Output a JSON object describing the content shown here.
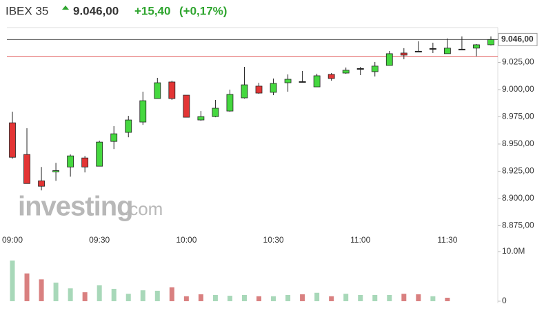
{
  "chart_data": {
    "type": "candlestick",
    "title": "IBEX 35",
    "last": {
      "value": 9046,
      "label": "9.046,00"
    },
    "change": "+15,40",
    "change_pct": "(+0,17%)",
    "watermark": "investing",
    "watermark_suffix": ".com",
    "prev_close": 9030.6,
    "categories": [
      "09:00",
      null,
      null,
      null,
      null,
      null,
      "09:30",
      null,
      null,
      null,
      null,
      null,
      "10:00",
      null,
      null,
      null,
      null,
      null,
      "10:30",
      null,
      null,
      null,
      null,
      null,
      "11:00",
      null,
      null,
      null,
      null,
      null,
      "11:30",
      null,
      null,
      null
    ],
    "open": [
      8969.5,
      8940.4,
      8916.2,
      8924.4,
      8928.9,
      8937.2,
      8929.6,
      8952.4,
      8960.7,
      8970.2,
      8991.8,
      9007.0,
      8994.9,
      8972.1,
      8975.2,
      8980.3,
      8992.4,
      9003.2,
      8997.5,
      9006.3,
      9007.0,
      9002.5,
      9014.0,
      9015.2,
      9019.0,
      9016.5,
      9022.2,
      9033.6,
      9034.9,
      9037.4,
      9033.0,
      9036.8,
      9038.1,
      9041.2
    ],
    "high": [
      8979.7,
      8964.5,
      8928.9,
      8932.7,
      8940.4,
      8939.1,
      8953.0,
      8966.4,
      8975.9,
      8998.1,
      9010.8,
      9008.2,
      8994.9,
      8980.3,
      8990.5,
      9000.0,
      9020.9,
      9006.3,
      9010.2,
      9014.0,
      9017.1,
      9014.6,
      9015.2,
      9020.3,
      9020.9,
      9025.4,
      9035.5,
      9038.1,
      9044.4,
      9043.1,
      9047.0,
      9048.9,
      9041.9,
      9048.9
    ],
    "low": [
      8936.5,
      8913.7,
      8907.4,
      8916.2,
      8920.0,
      8923.9,
      8929.6,
      8945.4,
      8956.2,
      8967.6,
      8991.8,
      8990.5,
      8974.6,
      8971.4,
      8974.6,
      8979.7,
      8991.8,
      8996.2,
      8994.9,
      8998.1,
      9007.0,
      9002.5,
      9008.2,
      9014.6,
      9013.3,
      9012.1,
      9022.2,
      9027.9,
      9034.9,
      9033.6,
      9033.0,
      9036.2,
      9030.5,
      9040.6
    ],
    "close": [
      8937.8,
      8913.7,
      8911.2,
      8925.6,
      8939.1,
      8928.9,
      8951.8,
      8959.4,
      8972.1,
      8989.8,
      9006.3,
      8991.8,
      8974.6,
      8975.2,
      8982.9,
      8995.6,
      9004.4,
      8996.8,
      9005.7,
      9009.5,
      9007.0,
      9012.7,
      9010.2,
      9017.8,
      9019.0,
      9021.6,
      9033.0,
      9031.7,
      9034.9,
      9037.4,
      9038.1,
      9036.8,
      9041.2,
      9046.0
    ],
    "volume": [
      8200000,
      5600000,
      4400000,
      3750000,
      2600000,
      1800000,
      3200000,
      2500000,
      1500000,
      2200000,
      2100000,
      2800000,
      1000000,
      1400000,
      1250000,
      1100000,
      1250000,
      1000000,
      1000000,
      1250000,
      1400000,
      1700000,
      1000000,
      1500000,
      1250000,
      1250000,
      1250000,
      1500000,
      1400000,
      1000000,
      700000,
      0,
      0,
      0
    ],
    "volume_colors": [
      "#a8d8b9",
      "#d98080",
      "#d98080",
      "#a8d8b9",
      "#a8d8b9",
      "#d98080",
      "#a8d8b9",
      "#a8d8b9",
      "#a8d8b9",
      "#a8d8b9",
      "#a8d8b9",
      "#d98080",
      "#d98080",
      "#d98080",
      "#a8d8b9",
      "#a8d8b9",
      "#a8d8b9",
      "#d98080",
      "#a8d8b9",
      "#a8d8b9",
      "#d98080",
      "#a8d8b9",
      "#d98080",
      "#a8d8b9",
      "#a8d8b9",
      "#a8d8b9",
      "#a8d8b9",
      "#d98080",
      "#d98080",
      "#a8d8b9",
      "#d98080",
      "#a8d8b9",
      "#a8d8b9",
      "#a8d8b9"
    ],
    "up_color": "#45d83f",
    "down_color": "#e33535",
    "flat_color": "#222222",
    "prev_close_color": "#e05a5a",
    "ylim": [
      8867,
      9057
    ],
    "yticks": [
      {
        "value": 8875,
        "label": "8.875,00"
      },
      {
        "value": 8900,
        "label": "8.900,00"
      },
      {
        "value": 8925,
        "label": "8.925,00"
      },
      {
        "value": 8950,
        "label": "8.950,00"
      },
      {
        "value": 8975,
        "label": "8.975,00"
      },
      {
        "value": 9000,
        "label": "9.000,00"
      },
      {
        "value": 9025,
        "label": "9.025,00"
      }
    ],
    "volume_ylim": [
      0,
      10000000
    ],
    "volume_yticks": [
      0,
      {
        "value": 10000000,
        "label": "10.0M"
      }
    ]
  }
}
